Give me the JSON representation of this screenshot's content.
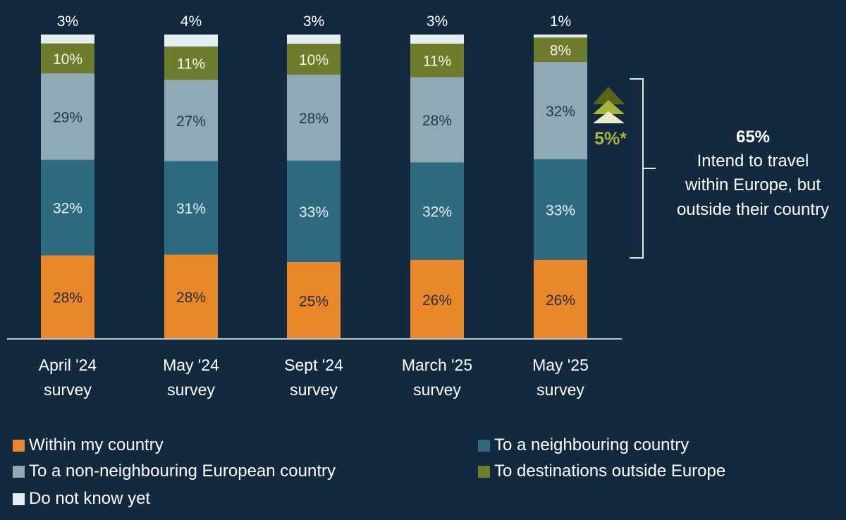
{
  "chart_data": {
    "type": "bar",
    "stacked": true,
    "categories": [
      "April '24 survey",
      "May '24 survey",
      "Sept '24 survey",
      "March '25 survey",
      "May '25 survey"
    ],
    "category_lines": [
      [
        "April '24",
        "survey"
      ],
      [
        "May '24",
        "survey"
      ],
      [
        "Sept '24",
        "survey"
      ],
      [
        "March '25",
        "survey"
      ],
      [
        "May '25",
        "survey"
      ]
    ],
    "series": [
      {
        "name": "Within my country",
        "color": "#e8882a",
        "values": [
          28,
          28,
          25,
          26,
          26
        ],
        "labels": [
          "28%",
          "28%",
          "25%",
          "26%",
          "26%"
        ],
        "label_color": "#2b2b2b"
      },
      {
        "name": "To a neighbouring country",
        "color": "#2e6b80",
        "values": [
          32,
          31,
          33,
          32,
          33
        ],
        "labels": [
          "32%",
          "31%",
          "33%",
          "32%",
          "33%"
        ],
        "label_color": "#e6eef2"
      },
      {
        "name": "To a non-neighbouring European country",
        "color": "#8fa9b5",
        "values": [
          29,
          27,
          28,
          28,
          32
        ],
        "labels": [
          "29%",
          "27%",
          "28%",
          "28%",
          "32%"
        ],
        "label_color": "#1e3a4c"
      },
      {
        "name": "To destinations outside Europe",
        "color": "#6e7d2c",
        "values": [
          10,
          11,
          10,
          11,
          8
        ],
        "labels": [
          "10%",
          "11%",
          "10%",
          "11%",
          "8%"
        ],
        "label_color": "#f2f2e6"
      },
      {
        "name": "Do not know yet",
        "color": "#e4edf0",
        "values": [
          3,
          4,
          3,
          3,
          1
        ],
        "labels": [
          "3%",
          "4%",
          "3%",
          "3%",
          "1%"
        ],
        "label_color": "#ffffff"
      }
    ],
    "ylim": [
      0,
      100
    ],
    "grid": false,
    "legend_position": "bottom",
    "annotation": {
      "change_label": "5%*",
      "change_color": "#a8b43a",
      "bracket_value": "65%",
      "bracket_text": [
        "Intend to travel",
        "within Europe, but",
        "outside their country"
      ]
    }
  }
}
